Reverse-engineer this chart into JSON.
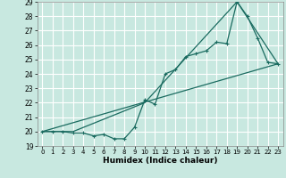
{
  "title": "",
  "xlabel": "Humidex (Indice chaleur)",
  "xlim": [
    -0.5,
    23.5
  ],
  "ylim": [
    19,
    29
  ],
  "xticks": [
    0,
    1,
    2,
    3,
    4,
    5,
    6,
    7,
    8,
    9,
    10,
    11,
    12,
    13,
    14,
    15,
    16,
    17,
    18,
    19,
    20,
    21,
    22,
    23
  ],
  "yticks": [
    19,
    20,
    21,
    22,
    23,
    24,
    25,
    26,
    27,
    28,
    29
  ],
  "bg_color": "#c8e8e0",
  "line_color": "#1a6b60",
  "grid_color": "#ffffff",
  "line1_x": [
    0,
    1,
    2,
    3,
    4,
    5,
    6,
    7,
    8,
    9,
    10,
    11,
    12,
    13,
    14,
    15,
    16,
    17,
    18,
    19,
    20,
    21,
    22,
    23
  ],
  "line1_y": [
    20.0,
    20.0,
    20.0,
    19.9,
    19.9,
    19.7,
    19.8,
    19.5,
    19.5,
    20.3,
    22.2,
    21.9,
    24.0,
    24.3,
    25.2,
    25.4,
    25.6,
    26.2,
    26.1,
    29.0,
    28.0,
    26.5,
    24.8,
    24.7
  ],
  "line2_x": [
    0,
    3,
    10,
    19,
    23
  ],
  "line2_y": [
    20.0,
    20.0,
    22.0,
    29.0,
    24.7
  ],
  "line3_x": [
    0,
    23
  ],
  "line3_y": [
    20.0,
    24.7
  ]
}
